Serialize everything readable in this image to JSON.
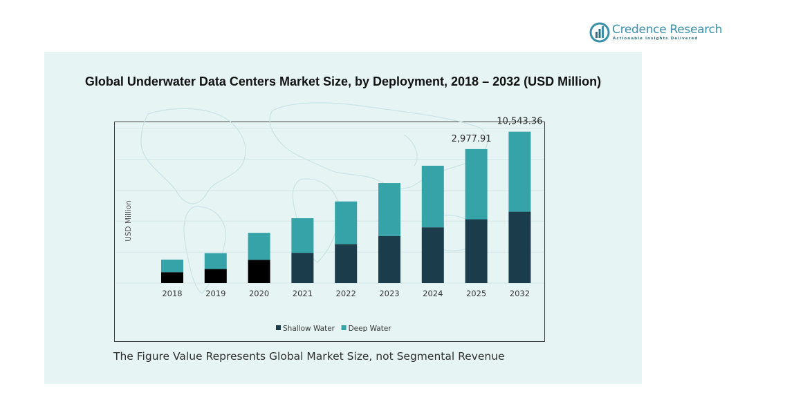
{
  "brand": {
    "name": "Credence Research",
    "tagline": "Actionable Insights Delivered",
    "logo_icon": "bar-growth-logo-icon"
  },
  "footnote": "The Figure Value Represents Global Market Size, not Segmental Revenue",
  "colors": {
    "panel_bg": "#e6f4f4",
    "shallow_water": "#1b3c4a",
    "shallow_water_early": "#000000",
    "deep_water": "#35a3a8",
    "brand": "#3a8fa8"
  },
  "chart_data": {
    "type": "bar",
    "stacked": true,
    "title": "Global Underwater Data Centers Market Size, by Deployment, 2018 – 2032 (USD Million)",
    "xlabel": "",
    "ylabel": "USD Million",
    "categories": [
      "2018",
      "2019",
      "2020",
      "2021",
      "2022",
      "2023",
      "2024",
      "2025",
      "2032"
    ],
    "series": [
      {
        "name": "Shallow Water",
        "values": [
          200,
          260,
          430,
          560,
          720,
          870,
          1030,
          1180,
          1320
        ]
      },
      {
        "name": "Deep Water",
        "values": [
          235,
          295,
          500,
          640,
          790,
          980,
          1140,
          1297.91,
          1480
        ]
      }
    ],
    "data_labels": [
      {
        "category": "2025",
        "text": "2,977.91"
      },
      {
        "category": "2032",
        "text": "10,543.36"
      }
    ],
    "ylim": [
      0,
      3000
    ],
    "grid": true,
    "legend": "bottom-center"
  }
}
